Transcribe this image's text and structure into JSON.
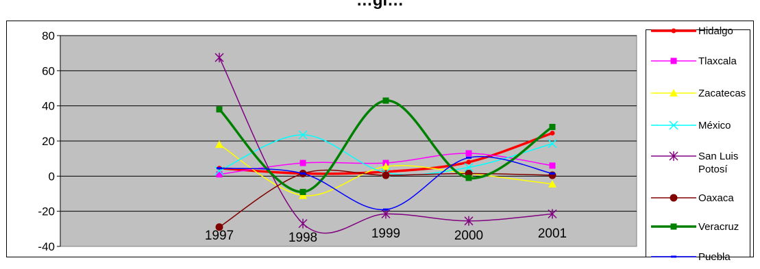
{
  "chart_data": {
    "type": "line",
    "title": "…gi…",
    "categories": [
      "1997",
      "1998",
      "1999",
      "2000",
      "2001"
    ],
    "ylim": [
      -40,
      80
    ],
    "yticks": [
      -40,
      -20,
      0,
      20,
      40,
      60,
      80
    ],
    "grid": true,
    "plot_background": "#c0c0c0",
    "legend_position": "right",
    "series": [
      {
        "name": "Hidalgo",
        "color": "#ff0000",
        "marker": "circle",
        "values": [
          4.5,
          1.5,
          2.5,
          8,
          24.5
        ]
      },
      {
        "name": "Tlaxcala",
        "color": "#ff00ff",
        "marker": "square",
        "values": [
          1,
          7.5,
          7.5,
          13,
          6
        ]
      },
      {
        "name": "Zacatecas",
        "color": "#ffff00",
        "marker": "triangle",
        "values": [
          18,
          -11,
          5.5,
          1.5,
          -4.5
        ]
      },
      {
        "name": "México",
        "color": "#00ffff",
        "marker": "x",
        "values": [
          3,
          23.5,
          2,
          5,
          18.5
        ]
      },
      {
        "name": "San Luis Potosí",
        "legend_lines": [
          "San Luis",
          "Potosí"
        ],
        "color": "#800080",
        "marker": "star",
        "values": [
          67.5,
          -27,
          -21.5,
          -25.5,
          -21.5
        ]
      },
      {
        "name": "Oaxaca",
        "color": "#800000",
        "marker": "bigcircle",
        "values": [
          -29,
          1.5,
          0.5,
          1.5,
          0.5
        ]
      },
      {
        "name": "Veracruz",
        "color": "#008000",
        "marker": "square",
        "values": [
          38,
          -9,
          43,
          -1,
          28
        ]
      },
      {
        "name": "Puebla",
        "color": "#0000ff",
        "marker": "dash",
        "values": [
          4.5,
          1.5,
          -19,
          10.5,
          1.5
        ]
      }
    ]
  }
}
